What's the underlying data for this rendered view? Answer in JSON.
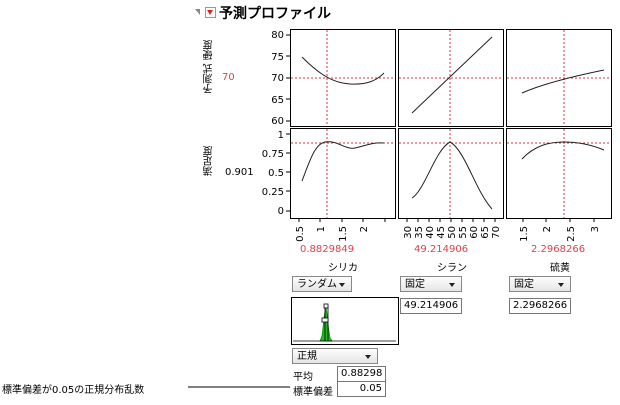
{
  "panel": {
    "title": "予測プロファイル"
  },
  "responses": [
    {
      "label": "予測式 硬度",
      "value": "70"
    },
    {
      "label": "満足度",
      "value": "0.901"
    }
  ],
  "y_ticks": {
    "hardness": [
      "80",
      "75",
      "70",
      "65",
      "60"
    ],
    "desirability": [
      "1",
      "0.75",
      "0.5",
      "0.25",
      "0"
    ]
  },
  "factors": [
    {
      "name": "シリカ",
      "current": "0.8829849",
      "ticks": [
        "0.5",
        "1",
        "1.5",
        "2"
      ],
      "mode": "ランダム"
    },
    {
      "name": "シラン",
      "current": "49.214906",
      "ticks": [
        "30",
        "35",
        "40",
        "45",
        "50",
        "55",
        "60",
        "65",
        "70"
      ],
      "mode": "固定",
      "field": "49.214906"
    },
    {
      "name": "硫黄",
      "current": "2.2968266",
      "ticks": [
        "1.5",
        "2",
        "2.5",
        "3"
      ],
      "mode": "固定",
      "field": "2.2968266"
    }
  ],
  "distribution": {
    "type": "正規",
    "mean_label": "平均",
    "mean_value": "0.88298",
    "sd_label": "標準偏差",
    "sd_value": "0.05"
  },
  "annotation": "標準偏差が0.05の正規分布乱数",
  "colors": {
    "ref_line": "#e03040",
    "current_value": "#e0404a",
    "hist_fill": "#22bb22"
  }
}
